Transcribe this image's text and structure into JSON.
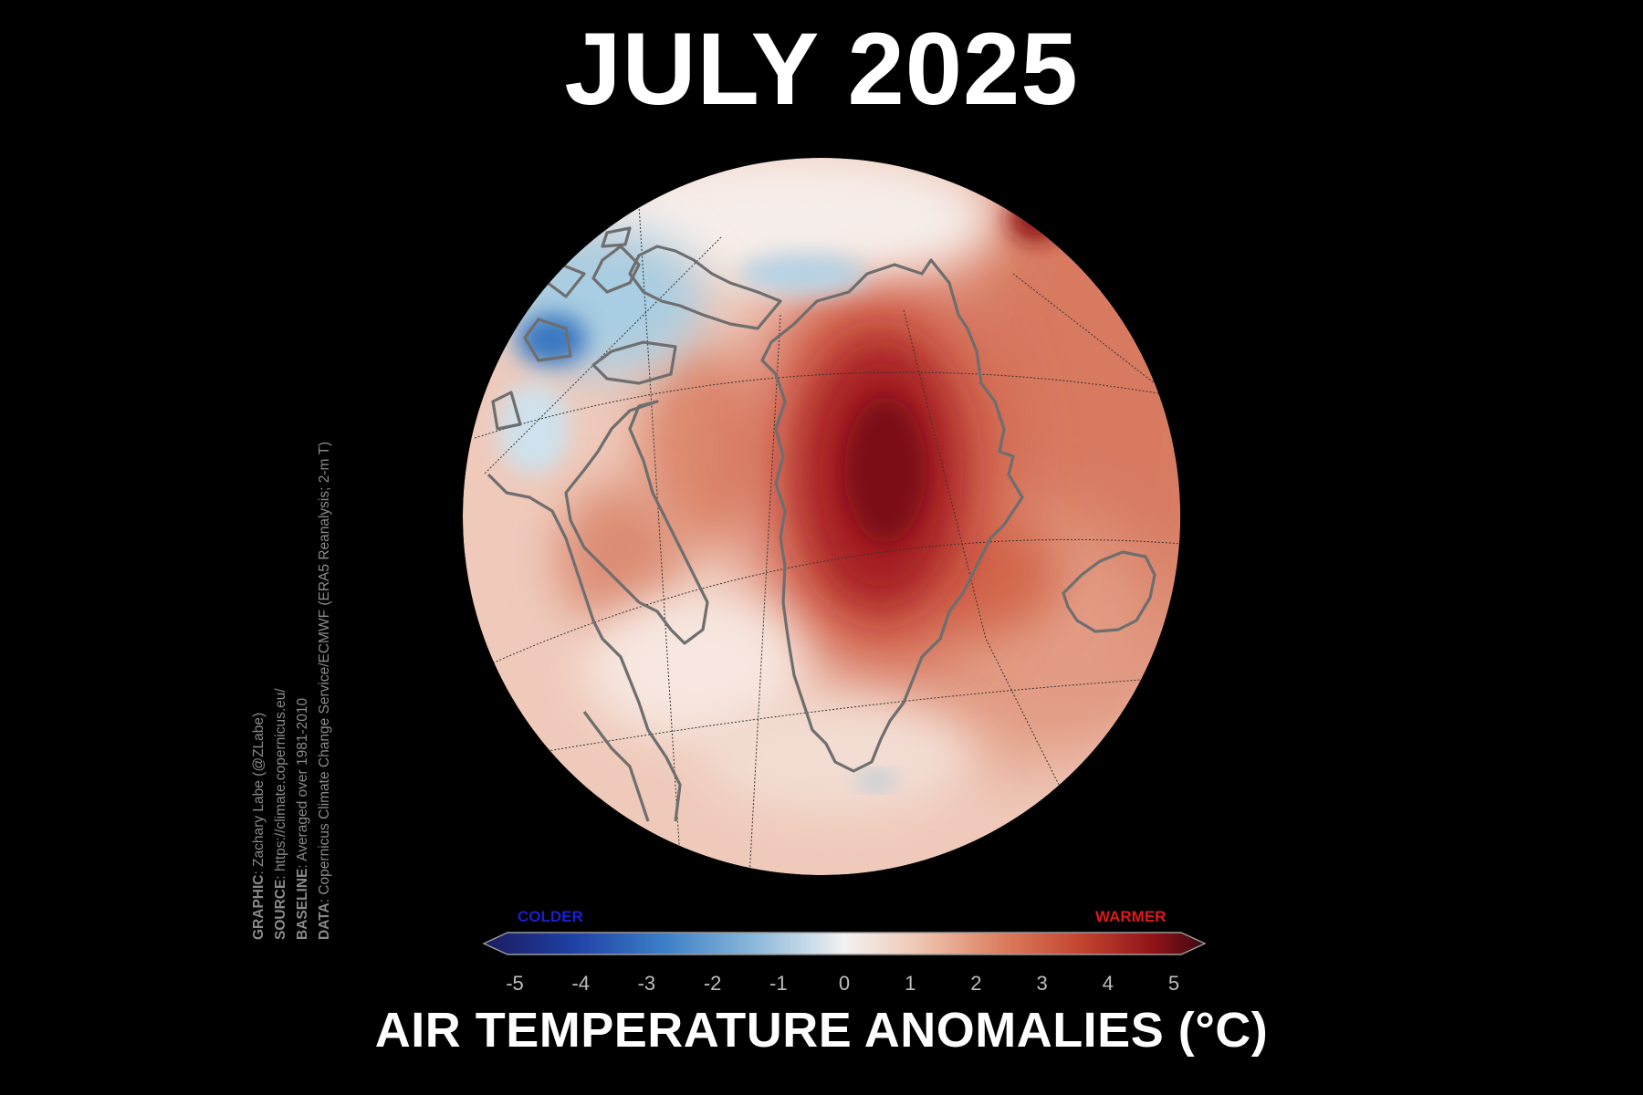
{
  "title": "JULY 2025",
  "credits": [
    {
      "label": "GRAPHIC",
      "text": ": Zachary Labe (@ZLabe)"
    },
    {
      "label": "SOURCE",
      "text": ": https://climate.copernicus.eu/"
    },
    {
      "label": "BASELINE",
      "text": ": Averaged over 1981-2010"
    },
    {
      "label": "DATA",
      "text": ": Copernicus Climate Change Service/ECMWF (ERA5 Reanalysis; 2-m T)"
    }
  ],
  "colorbar": {
    "colder_label": "COLDER",
    "warmer_label": "WARMER",
    "ticks": [
      "-5",
      "-4",
      "-3",
      "-2",
      "-1",
      "0",
      "1",
      "2",
      "3",
      "4",
      "5"
    ],
    "min": -5,
    "max": 5,
    "colors": [
      "#1b1b5e",
      "#1f3fa3",
      "#3c7fc7",
      "#8fbadb",
      "#f2f2f2",
      "#f0c8b4",
      "#dc7d5f",
      "#c2432e",
      "#8f1219",
      "#3a0a0f"
    ],
    "unit_label": "AIR TEMPERATURE ANOMALIES (°C)"
  },
  "map": {
    "projection": "polar stereographic (North Atlantic / Greenland)",
    "coastline_color": "#6e6e6e",
    "regions": [
      {
        "name": "Greenland ice sheet",
        "anomaly_c": 4.5
      },
      {
        "name": "Baffin Bay",
        "anomaly_c": 2
      },
      {
        "name": "Canadian Arctic Archipelago",
        "anomaly_c": -1.5
      },
      {
        "name": "Norwegian Sea",
        "anomaly_c": 2.5
      },
      {
        "name": "Iceland",
        "anomaly_c": 2
      },
      {
        "name": "Labrador Sea",
        "anomaly_c": 0.5
      }
    ]
  }
}
